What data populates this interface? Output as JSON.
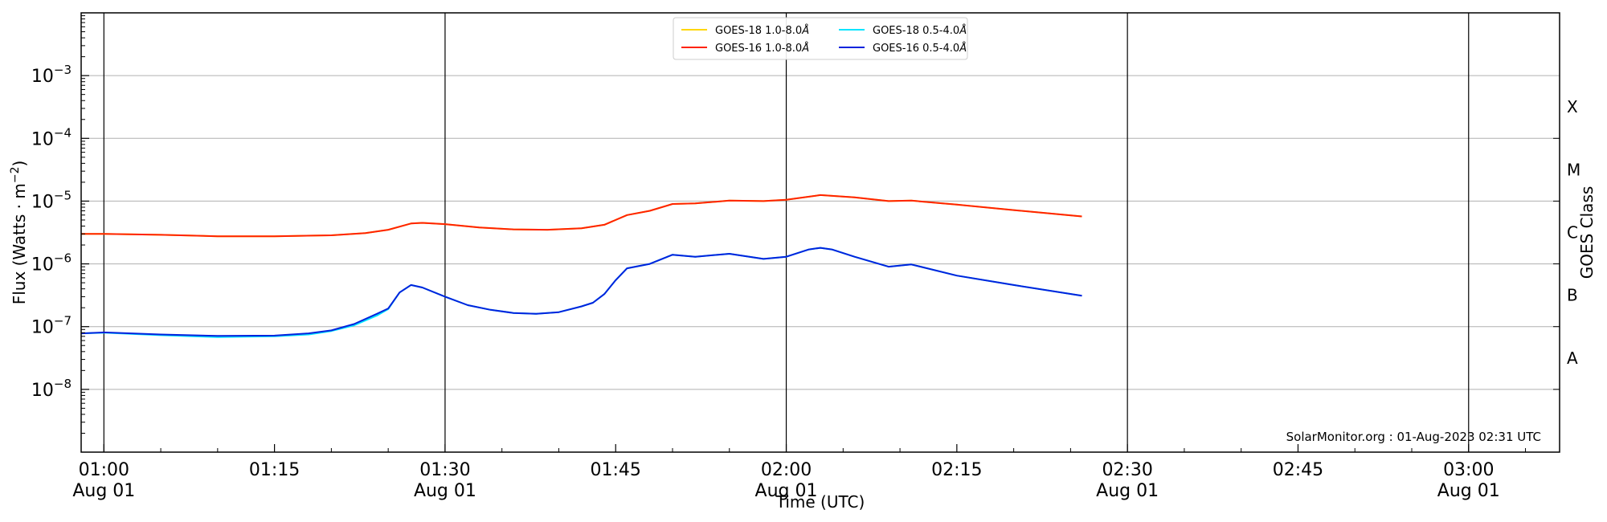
{
  "chart_data": {
    "type": "line",
    "xlabel": "Time (UTC)",
    "ylabel": "Flux (Watts · m",
    "ylabel_sup": "−2",
    "ylabel_close": ")",
    "right_label": "GOES Class",
    "ylim": [
      1e-09,
      0.01
    ],
    "yscale": "log",
    "xlim": [
      "00:58",
      "03:08"
    ],
    "grid": "horizontal",
    "legend_position": "top-center",
    "credit": "SolarMonitor.org : 01-Aug-2023 02:31 UTC",
    "y_ticks": [
      {
        "value": 1e-08,
        "base": "10",
        "exp": "−8"
      },
      {
        "value": 1e-07,
        "base": "10",
        "exp": "−7"
      },
      {
        "value": 1e-06,
        "base": "10",
        "exp": "−6"
      },
      {
        "value": 1e-05,
        "base": "10",
        "exp": "−5"
      },
      {
        "value": 0.0001,
        "base": "10",
        "exp": "−4"
      },
      {
        "value": 0.001,
        "base": "10",
        "exp": "−3"
      }
    ],
    "x_ticks": [
      {
        "time": "01:00",
        "label": "01:00",
        "sub": "Aug 01",
        "vline": true
      },
      {
        "time": "01:15",
        "label": "01:15",
        "sub": "",
        "vline": false
      },
      {
        "time": "01:30",
        "label": "01:30",
        "sub": "Aug 01",
        "vline": true
      },
      {
        "time": "01:45",
        "label": "01:45",
        "sub": "",
        "vline": false
      },
      {
        "time": "02:00",
        "label": "02:00",
        "sub": "Aug 01",
        "vline": true
      },
      {
        "time": "02:15",
        "label": "02:15",
        "sub": "",
        "vline": false
      },
      {
        "time": "02:30",
        "label": "02:30",
        "sub": "Aug 01",
        "vline": true
      },
      {
        "time": "02:45",
        "label": "02:45",
        "sub": "",
        "vline": false
      },
      {
        "time": "03:00",
        "label": "03:00",
        "sub": "Aug 01",
        "vline": true
      }
    ],
    "classes": [
      {
        "label": "A",
        "low": 1e-08,
        "high": 1e-07
      },
      {
        "label": "B",
        "low": 1e-07,
        "high": 1e-06
      },
      {
        "label": "C",
        "low": 1e-06,
        "high": 1e-05
      },
      {
        "label": "M",
        "low": 1e-05,
        "high": 0.0001
      },
      {
        "label": "X",
        "low": 0.0001,
        "high": 0.001
      }
    ],
    "series": [
      {
        "name": "GOES-18 1.0-8.0",
        "unit": "Å",
        "color": "#FFD700",
        "x": [
          "00:58",
          "01:00",
          "01:05",
          "01:10",
          "01:15",
          "01:20",
          "01:23",
          "01:25",
          "01:27",
          "01:28",
          "01:30",
          "01:33",
          "01:36",
          "01:39",
          "01:42",
          "01:44",
          "01:46",
          "01:48",
          "01:50",
          "01:52",
          "01:55",
          "01:58",
          "02:00",
          "02:03",
          "02:06",
          "02:09",
          "02:11",
          "02:15",
          "02:20",
          "02:26"
        ],
        "values": [
          3e-06,
          3e-06,
          2.9e-06,
          2.75e-06,
          2.75e-06,
          2.85e-06,
          3.1e-06,
          3.5e-06,
          4.4e-06,
          4.5e-06,
          4.3e-06,
          3.8e-06,
          3.55e-06,
          3.5e-06,
          3.7e-06,
          4.2e-06,
          6e-06,
          7e-06,
          9e-06,
          9.2e-06,
          1.02e-05,
          1e-05,
          1.05e-05,
          1.25e-05,
          1.15e-05,
          1e-05,
          1.02e-05,
          8.8e-06,
          7.2e-06,
          5.7e-06
        ]
      },
      {
        "name": "GOES-16 1.0-8.0",
        "unit": "Å",
        "color": "#FF2200",
        "x": [
          "00:58",
          "01:00",
          "01:05",
          "01:10",
          "01:15",
          "01:20",
          "01:23",
          "01:25",
          "01:27",
          "01:28",
          "01:30",
          "01:33",
          "01:36",
          "01:39",
          "01:42",
          "01:44",
          "01:46",
          "01:48",
          "01:50",
          "01:52",
          "01:55",
          "01:58",
          "02:00",
          "02:03",
          "02:06",
          "02:09",
          "02:11",
          "02:15",
          "02:20",
          "02:26"
        ],
        "values": [
          3e-06,
          3e-06,
          2.9e-06,
          2.75e-06,
          2.75e-06,
          2.85e-06,
          3.1e-06,
          3.5e-06,
          4.4e-06,
          4.5e-06,
          4.3e-06,
          3.8e-06,
          3.55e-06,
          3.5e-06,
          3.7e-06,
          4.2e-06,
          6e-06,
          7e-06,
          9e-06,
          9.2e-06,
          1.02e-05,
          1e-05,
          1.05e-05,
          1.25e-05,
          1.15e-05,
          1e-05,
          1.02e-05,
          8.8e-06,
          7.2e-06,
          5.7e-06
        ]
      },
      {
        "name": "GOES-18 0.5-4.0",
        "unit": "Å",
        "color": "#00E5FF",
        "x": [
          "00:58",
          "01:00",
          "01:05",
          "01:10",
          "01:15",
          "01:18",
          "01:20",
          "01:22",
          "01:24",
          "01:25",
          "01:26",
          "01:27",
          "01:28",
          "01:30",
          "01:32",
          "01:34",
          "01:36",
          "01:38",
          "01:40",
          "01:42",
          "01:43",
          "01:44",
          "01:45",
          "01:46",
          "01:48",
          "01:50",
          "01:52",
          "01:55",
          "01:58",
          "02:00",
          "02:02",
          "02:03",
          "02:04",
          "02:06",
          "02:09",
          "02:11",
          "02:15",
          "02:20",
          "02:26"
        ],
        "values": [
          7.8e-08,
          8e-08,
          7.3e-08,
          6.8e-08,
          7e-08,
          7.5e-08,
          8.5e-08,
          1.05e-07,
          1.5e-07,
          1.9e-07,
          3.5e-07,
          4.6e-07,
          4.2e-07,
          3e-07,
          2.2e-07,
          1.85e-07,
          1.65e-07,
          1.6e-07,
          1.7e-07,
          2.1e-07,
          2.4e-07,
          3.3e-07,
          5.5e-07,
          8.5e-07,
          1e-06,
          1.4e-06,
          1.3e-06,
          1.45e-06,
          1.2e-06,
          1.3e-06,
          1.7e-06,
          1.8e-06,
          1.7e-06,
          1.3e-06,
          9e-07,
          9.8e-07,
          6.5e-07,
          4.6e-07,
          3.1e-07
        ]
      },
      {
        "name": "GOES-16 0.5-4.0",
        "unit": "Å",
        "color": "#0022DD",
        "x": [
          "00:58",
          "01:00",
          "01:05",
          "01:10",
          "01:15",
          "01:18",
          "01:20",
          "01:22",
          "01:24",
          "01:25",
          "01:26",
          "01:27",
          "01:28",
          "01:30",
          "01:32",
          "01:34",
          "01:36",
          "01:38",
          "01:40",
          "01:42",
          "01:43",
          "01:44",
          "01:45",
          "01:46",
          "01:48",
          "01:50",
          "01:52",
          "01:55",
          "01:58",
          "02:00",
          "02:02",
          "02:03",
          "02:04",
          "02:06",
          "02:09",
          "02:11",
          "02:15",
          "02:20",
          "02:26"
        ],
        "values": [
          7.8e-08,
          8.1e-08,
          7.5e-08,
          7.1e-08,
          7.2e-08,
          7.8e-08,
          8.7e-08,
          1.1e-07,
          1.6e-07,
          1.95e-07,
          3.5e-07,
          4.6e-07,
          4.2e-07,
          3e-07,
          2.2e-07,
          1.85e-07,
          1.65e-07,
          1.6e-07,
          1.7e-07,
          2.1e-07,
          2.4e-07,
          3.3e-07,
          5.5e-07,
          8.5e-07,
          1e-06,
          1.4e-06,
          1.3e-06,
          1.45e-06,
          1.2e-06,
          1.3e-06,
          1.7e-06,
          1.8e-06,
          1.7e-06,
          1.3e-06,
          9e-07,
          9.8e-07,
          6.5e-07,
          4.6e-07,
          3.1e-07
        ]
      }
    ]
  }
}
